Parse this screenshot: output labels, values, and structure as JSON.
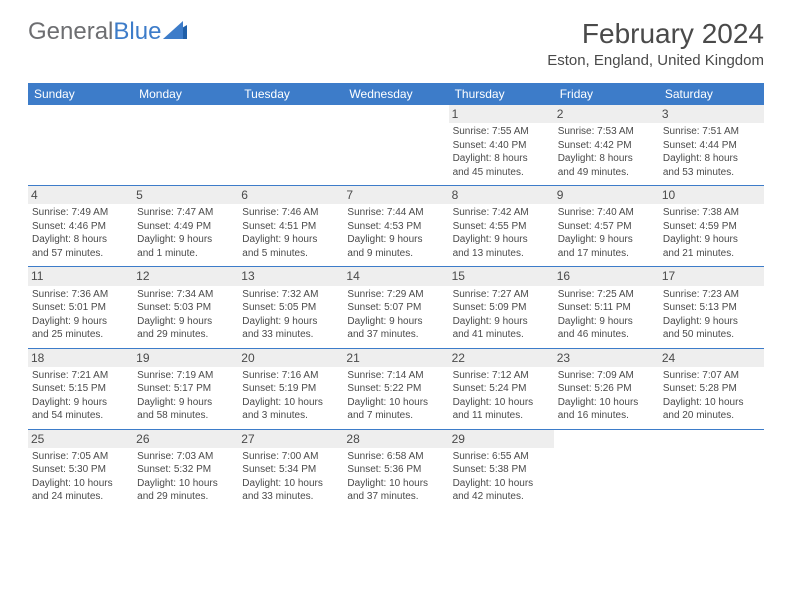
{
  "brand": {
    "part1": "General",
    "part2": "Blue"
  },
  "title": "February 2024",
  "location": "Eston, England, United Kingdom",
  "colors": {
    "header_bg": "#3d7cc9",
    "text": "#4a4a4a",
    "daynum_bg": "#eeeeee"
  },
  "weekdays": [
    "Sunday",
    "Monday",
    "Tuesday",
    "Wednesday",
    "Thursday",
    "Friday",
    "Saturday"
  ],
  "weeks": [
    [
      null,
      null,
      null,
      null,
      {
        "day": "1",
        "sunrise": "Sunrise: 7:55 AM",
        "sunset": "Sunset: 4:40 PM",
        "dl1": "Daylight: 8 hours",
        "dl2": "and 45 minutes."
      },
      {
        "day": "2",
        "sunrise": "Sunrise: 7:53 AM",
        "sunset": "Sunset: 4:42 PM",
        "dl1": "Daylight: 8 hours",
        "dl2": "and 49 minutes."
      },
      {
        "day": "3",
        "sunrise": "Sunrise: 7:51 AM",
        "sunset": "Sunset: 4:44 PM",
        "dl1": "Daylight: 8 hours",
        "dl2": "and 53 minutes."
      }
    ],
    [
      {
        "day": "4",
        "sunrise": "Sunrise: 7:49 AM",
        "sunset": "Sunset: 4:46 PM",
        "dl1": "Daylight: 8 hours",
        "dl2": "and 57 minutes."
      },
      {
        "day": "5",
        "sunrise": "Sunrise: 7:47 AM",
        "sunset": "Sunset: 4:49 PM",
        "dl1": "Daylight: 9 hours",
        "dl2": "and 1 minute."
      },
      {
        "day": "6",
        "sunrise": "Sunrise: 7:46 AM",
        "sunset": "Sunset: 4:51 PM",
        "dl1": "Daylight: 9 hours",
        "dl2": "and 5 minutes."
      },
      {
        "day": "7",
        "sunrise": "Sunrise: 7:44 AM",
        "sunset": "Sunset: 4:53 PM",
        "dl1": "Daylight: 9 hours",
        "dl2": "and 9 minutes."
      },
      {
        "day": "8",
        "sunrise": "Sunrise: 7:42 AM",
        "sunset": "Sunset: 4:55 PM",
        "dl1": "Daylight: 9 hours",
        "dl2": "and 13 minutes."
      },
      {
        "day": "9",
        "sunrise": "Sunrise: 7:40 AM",
        "sunset": "Sunset: 4:57 PM",
        "dl1": "Daylight: 9 hours",
        "dl2": "and 17 minutes."
      },
      {
        "day": "10",
        "sunrise": "Sunrise: 7:38 AM",
        "sunset": "Sunset: 4:59 PM",
        "dl1": "Daylight: 9 hours",
        "dl2": "and 21 minutes."
      }
    ],
    [
      {
        "day": "11",
        "sunrise": "Sunrise: 7:36 AM",
        "sunset": "Sunset: 5:01 PM",
        "dl1": "Daylight: 9 hours",
        "dl2": "and 25 minutes."
      },
      {
        "day": "12",
        "sunrise": "Sunrise: 7:34 AM",
        "sunset": "Sunset: 5:03 PM",
        "dl1": "Daylight: 9 hours",
        "dl2": "and 29 minutes."
      },
      {
        "day": "13",
        "sunrise": "Sunrise: 7:32 AM",
        "sunset": "Sunset: 5:05 PM",
        "dl1": "Daylight: 9 hours",
        "dl2": "and 33 minutes."
      },
      {
        "day": "14",
        "sunrise": "Sunrise: 7:29 AM",
        "sunset": "Sunset: 5:07 PM",
        "dl1": "Daylight: 9 hours",
        "dl2": "and 37 minutes."
      },
      {
        "day": "15",
        "sunrise": "Sunrise: 7:27 AM",
        "sunset": "Sunset: 5:09 PM",
        "dl1": "Daylight: 9 hours",
        "dl2": "and 41 minutes."
      },
      {
        "day": "16",
        "sunrise": "Sunrise: 7:25 AM",
        "sunset": "Sunset: 5:11 PM",
        "dl1": "Daylight: 9 hours",
        "dl2": "and 46 minutes."
      },
      {
        "day": "17",
        "sunrise": "Sunrise: 7:23 AM",
        "sunset": "Sunset: 5:13 PM",
        "dl1": "Daylight: 9 hours",
        "dl2": "and 50 minutes."
      }
    ],
    [
      {
        "day": "18",
        "sunrise": "Sunrise: 7:21 AM",
        "sunset": "Sunset: 5:15 PM",
        "dl1": "Daylight: 9 hours",
        "dl2": "and 54 minutes."
      },
      {
        "day": "19",
        "sunrise": "Sunrise: 7:19 AM",
        "sunset": "Sunset: 5:17 PM",
        "dl1": "Daylight: 9 hours",
        "dl2": "and 58 minutes."
      },
      {
        "day": "20",
        "sunrise": "Sunrise: 7:16 AM",
        "sunset": "Sunset: 5:19 PM",
        "dl1": "Daylight: 10 hours",
        "dl2": "and 3 minutes."
      },
      {
        "day": "21",
        "sunrise": "Sunrise: 7:14 AM",
        "sunset": "Sunset: 5:22 PM",
        "dl1": "Daylight: 10 hours",
        "dl2": "and 7 minutes."
      },
      {
        "day": "22",
        "sunrise": "Sunrise: 7:12 AM",
        "sunset": "Sunset: 5:24 PM",
        "dl1": "Daylight: 10 hours",
        "dl2": "and 11 minutes."
      },
      {
        "day": "23",
        "sunrise": "Sunrise: 7:09 AM",
        "sunset": "Sunset: 5:26 PM",
        "dl1": "Daylight: 10 hours",
        "dl2": "and 16 minutes."
      },
      {
        "day": "24",
        "sunrise": "Sunrise: 7:07 AM",
        "sunset": "Sunset: 5:28 PM",
        "dl1": "Daylight: 10 hours",
        "dl2": "and 20 minutes."
      }
    ],
    [
      {
        "day": "25",
        "sunrise": "Sunrise: 7:05 AM",
        "sunset": "Sunset: 5:30 PM",
        "dl1": "Daylight: 10 hours",
        "dl2": "and 24 minutes."
      },
      {
        "day": "26",
        "sunrise": "Sunrise: 7:03 AM",
        "sunset": "Sunset: 5:32 PM",
        "dl1": "Daylight: 10 hours",
        "dl2": "and 29 minutes."
      },
      {
        "day": "27",
        "sunrise": "Sunrise: 7:00 AM",
        "sunset": "Sunset: 5:34 PM",
        "dl1": "Daylight: 10 hours",
        "dl2": "and 33 minutes."
      },
      {
        "day": "28",
        "sunrise": "Sunrise: 6:58 AM",
        "sunset": "Sunset: 5:36 PM",
        "dl1": "Daylight: 10 hours",
        "dl2": "and 37 minutes."
      },
      {
        "day": "29",
        "sunrise": "Sunrise: 6:55 AM",
        "sunset": "Sunset: 5:38 PM",
        "dl1": "Daylight: 10 hours",
        "dl2": "and 42 minutes."
      },
      null,
      null
    ]
  ]
}
